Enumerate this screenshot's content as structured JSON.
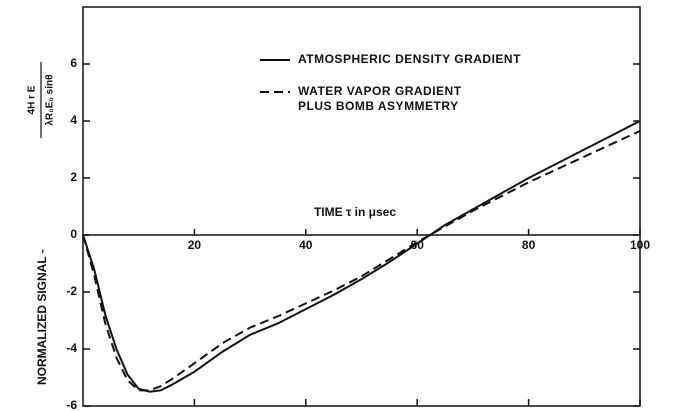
{
  "chart_data": {
    "type": "line",
    "xlabel": "TIME τ in μsec",
    "ylabel": "NORMALIZED SIGNAL -",
    "ylabel_fraction": {
      "numerator": "4H r E",
      "denominator": "λR₀E₀ sinθ"
    },
    "x": [
      0,
      2,
      4,
      6,
      8,
      10,
      12,
      14,
      16,
      20,
      25,
      30,
      35,
      40,
      45,
      50,
      55,
      60,
      65,
      70,
      75,
      80,
      85,
      90,
      95,
      100
    ],
    "series": [
      {
        "name": "ATMOSPHERIC DENSITY GRADIENT",
        "color": "#111111",
        "dash": "solid",
        "values": [
          0,
          -1.2,
          -2.8,
          -4.0,
          -4.9,
          -5.4,
          -5.5,
          -5.45,
          -5.25,
          -4.8,
          -4.1,
          -3.5,
          -3.1,
          -2.6,
          -2.1,
          -1.55,
          -0.95,
          -0.3,
          0.35,
          0.9,
          1.45,
          2.0,
          2.5,
          3.0,
          3.5,
          4.0
        ]
      },
      {
        "name": "WATER VAPOR GRADIENT PLUS BOMB ASYMMETRY",
        "color": "#111111",
        "dash": "dashed",
        "values": [
          0,
          -1.4,
          -3.1,
          -4.3,
          -5.1,
          -5.45,
          -5.45,
          -5.3,
          -5.05,
          -4.5,
          -3.8,
          -3.25,
          -2.85,
          -2.4,
          -1.95,
          -1.45,
          -0.85,
          -0.25,
          0.3,
          0.85,
          1.35,
          1.85,
          2.3,
          2.75,
          3.2,
          3.65
        ]
      }
    ],
    "xlim": [
      0,
      100
    ],
    "ylim": [
      -6,
      8
    ],
    "xticks": [
      20,
      40,
      60,
      80,
      100
    ],
    "yticks": [
      -6,
      -4,
      -2,
      0,
      2,
      4,
      6
    ]
  }
}
